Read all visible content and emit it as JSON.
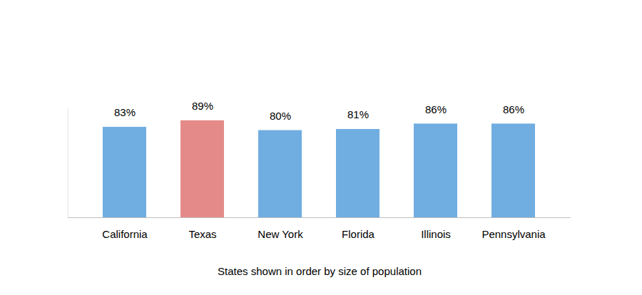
{
  "chart_data": {
    "type": "bar",
    "x_label": "States shown in order by size of population",
    "categories": [
      "California",
      "Texas",
      "New York",
      "Florida",
      "Illinois",
      "Pennsylvania"
    ],
    "values": [
      83,
      89,
      80,
      81,
      86,
      86
    ],
    "value_labels": [
      "83%",
      "89%",
      "80%",
      "81%",
      "86%",
      "86%"
    ],
    "colors": [
      "#70ade0",
      "#e48b89",
      "#70ade0",
      "#70ade0",
      "#70ade0",
      "#70ade0"
    ],
    "ylim": [
      0,
      100
    ],
    "data_labels": true,
    "tick_labels": "x",
    "grid": false
  }
}
